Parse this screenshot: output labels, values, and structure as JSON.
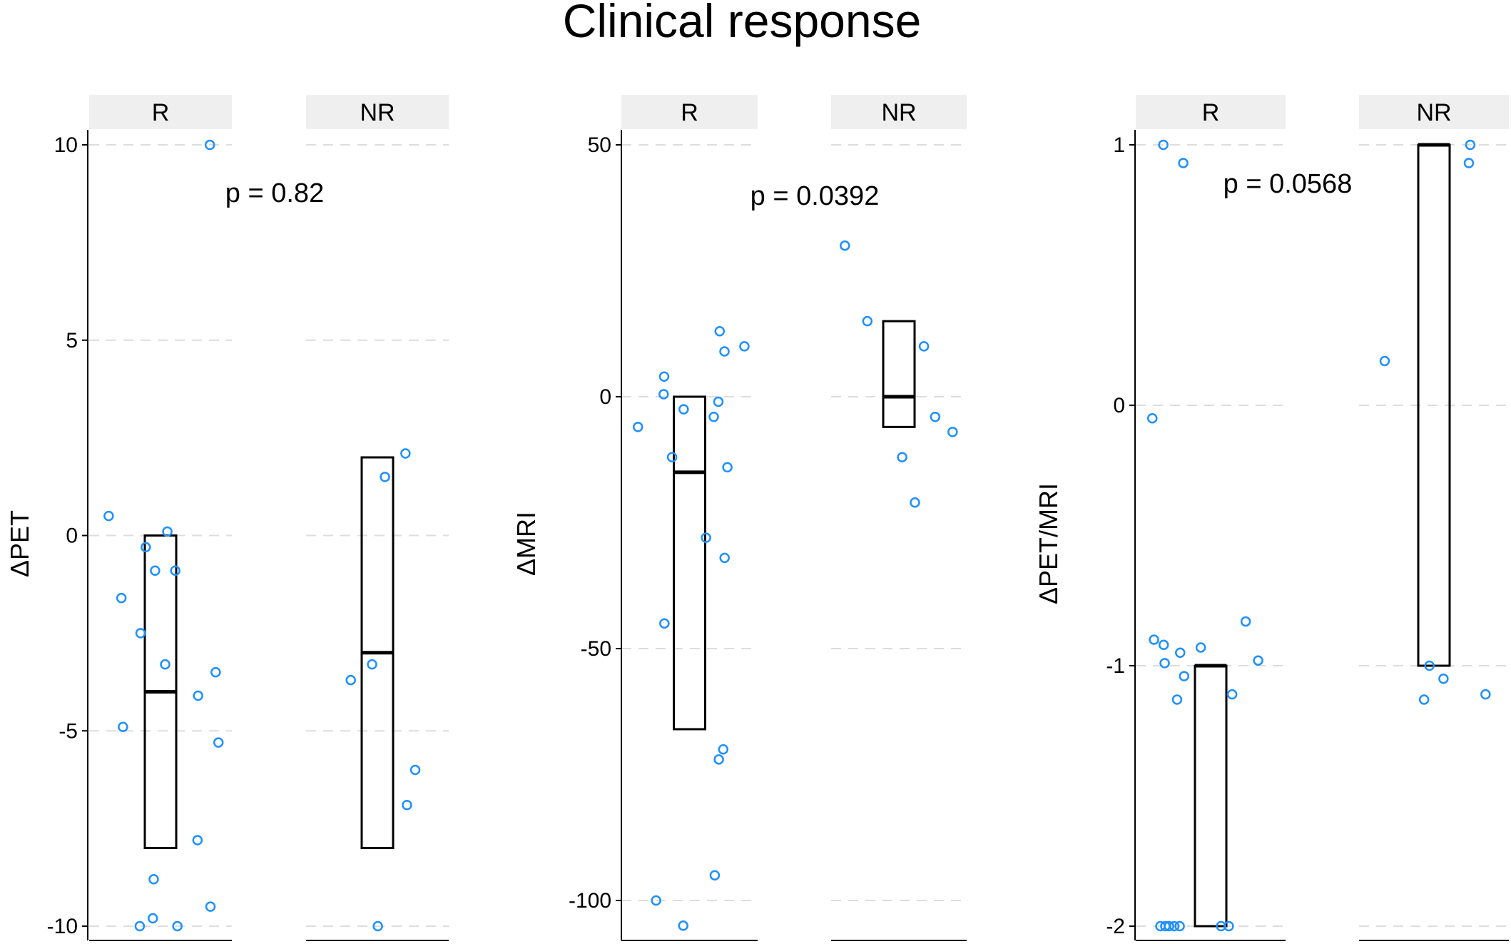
{
  "title": "Clinical response",
  "colors": {
    "point": "#1e90ff",
    "grid": "#dddddd",
    "strip": "#efefef",
    "axis": "#000000"
  },
  "chart_data": [
    {
      "type": "box",
      "ylabel": "ΔPET",
      "ylim": [
        -10,
        10
      ],
      "yticks": [
        -10,
        -5,
        0,
        5,
        10
      ],
      "ytick_labels": [
        "-10",
        "-5",
        "0",
        "5",
        "10"
      ],
      "pvalue": "p = 0.82",
      "panels": [
        {
          "label": "R",
          "box": {
            "q1": -8,
            "median": -4,
            "q3": 0
          },
          "points": [
            10,
            0.5,
            0.1,
            -0.3,
            -0.9,
            -0.9,
            -1.6,
            -2.5,
            -3.3,
            -3.5,
            -4.1,
            -4.9,
            -5.3,
            -7.8,
            -8.8,
            -9.5,
            -9.8,
            -10,
            -10
          ]
        },
        {
          "label": "NR",
          "box": {
            "q1": -8,
            "median": -3,
            "q3": 2
          },
          "points": [
            2.1,
            1.5,
            -3.3,
            -3.7,
            -6,
            -6.9,
            -10
          ]
        }
      ]
    },
    {
      "type": "box",
      "ylabel": "ΔMRI",
      "ylim": [
        -105,
        50
      ],
      "yticks": [
        -100,
        -50,
        0,
        50
      ],
      "ytick_labels": [
        "-100",
        "-50",
        "0",
        "50"
      ],
      "pvalue": "p = 0.0392",
      "panels": [
        {
          "label": "R",
          "box": {
            "q1": -66,
            "median": -15,
            "q3": 0
          },
          "points": [
            13,
            10,
            9,
            4,
            0.5,
            -1,
            -2.5,
            -4,
            -6,
            -12,
            -14,
            -28,
            -32,
            -45,
            -70,
            -72,
            -95,
            -100,
            -105
          ]
        },
        {
          "label": "NR",
          "box": {
            "q1": -6,
            "median": 0,
            "q3": 15
          },
          "points": [
            30,
            15,
            10,
            -4,
            -7,
            -12,
            -21
          ]
        }
      ]
    },
    {
      "type": "box",
      "ylabel": "ΔPET/MRI",
      "ylim": [
        -2,
        1
      ],
      "yticks": [
        -2,
        -1,
        0,
        1
      ],
      "ytick_labels": [
        "-2",
        "-1",
        "0",
        "1"
      ],
      "pvalue": "p = 0.0568",
      "panels": [
        {
          "label": "R",
          "box": {
            "q1": -2,
            "median": -1,
            "q3": -1
          },
          "points": [
            1,
            0.93,
            -0.05,
            -0.83,
            -0.9,
            -0.92,
            -0.93,
            -0.95,
            -0.98,
            -0.99,
            -1.04,
            -1.11,
            -1.13,
            -2,
            -2,
            -2,
            -2,
            -2,
            -2,
            -2
          ]
        },
        {
          "label": "NR",
          "box": {
            "q1": -1,
            "median": 1,
            "q3": 1
          },
          "points": [
            1,
            0.93,
            0.17,
            -1,
            -1.05,
            -1.11,
            -1.13
          ]
        }
      ]
    }
  ]
}
